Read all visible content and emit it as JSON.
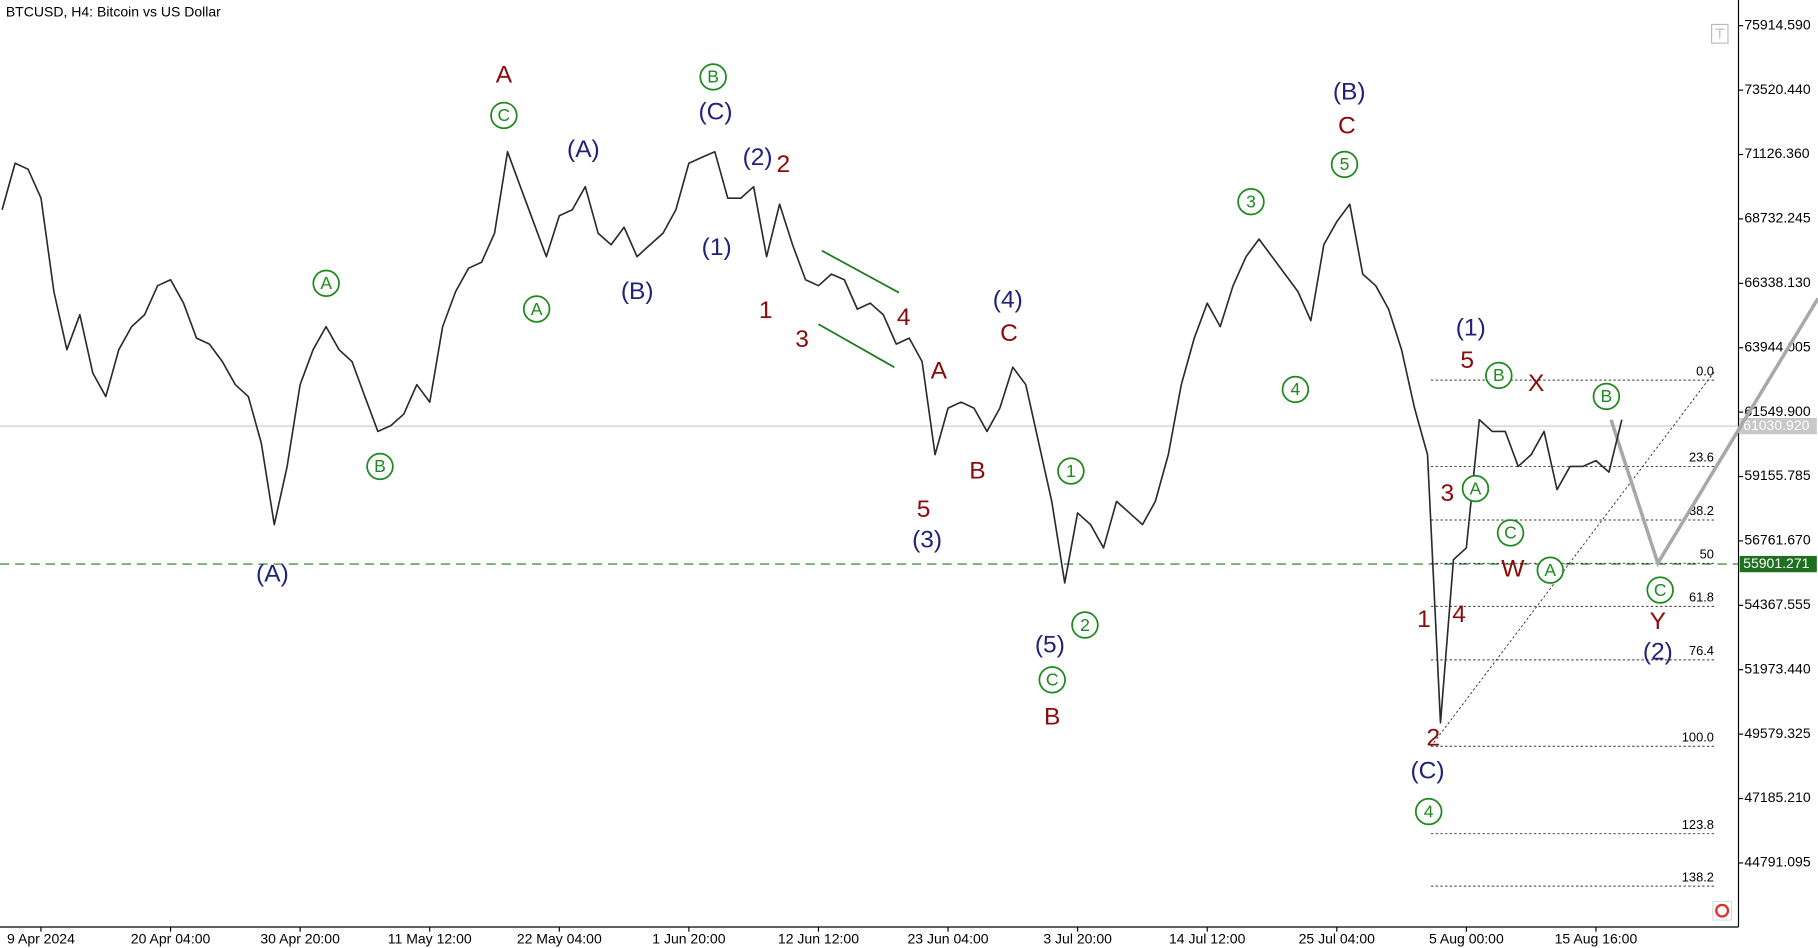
{
  "chart_data": {
    "type": "line",
    "title": "BTCUSD, H4:  Bitcoin vs US Dollar",
    "color": "#2b2b2b",
    "categories": [
      null,
      null,
      null,
      "9 Apr 2024",
      null,
      null,
      null,
      null,
      null,
      null,
      null,
      null,
      null,
      "20 Apr 04:00",
      null,
      null,
      null,
      null,
      null,
      null,
      null,
      null,
      null,
      "30 Apr 20:00",
      null,
      null,
      null,
      null,
      null,
      null,
      null,
      null,
      null,
      "11 May 12:00",
      null,
      null,
      null,
      null,
      null,
      null,
      null,
      null,
      null,
      "22 May 04:00",
      null,
      null,
      null,
      null,
      null,
      null,
      null,
      null,
      null,
      "1 Jun 20:00",
      null,
      null,
      null,
      null,
      null,
      null,
      null,
      null,
      null,
      "12 Jun 12:00",
      null,
      null,
      null,
      null,
      null,
      null,
      null,
      null,
      null,
      "23 Jun 04:00",
      null,
      null,
      null,
      null,
      null,
      null,
      null,
      null,
      null,
      "3 Jul 20:00",
      null,
      null,
      null,
      null,
      null,
      null,
      null,
      null,
      null,
      "14 Jul 12:00",
      null,
      null,
      null,
      null,
      null,
      null,
      null,
      null,
      null,
      "25 Jul 04:00",
      null,
      null,
      null,
      null,
      null,
      null,
      null,
      null,
      null,
      "5 Aug 00:00",
      null,
      null,
      null,
      null,
      null,
      null,
      null,
      null,
      null,
      "15 Aug 16:00",
      null,
      null,
      null,
      null,
      null,
      null,
      null,
      null,
      null,
      null,
      null
    ],
    "values": [
      69070,
      70800,
      70580,
      69500,
      66030,
      63870,
      65170,
      63000,
      62130,
      63870,
      64730,
      65170,
      66250,
      66470,
      65600,
      64300,
      64080,
      63430,
      62570,
      62130,
      60400,
      57370,
      59530,
      62570,
      63870,
      64730,
      63870,
      63430,
      62130,
      60830,
      61050,
      61480,
      62570,
      61920,
      64730,
      66030,
      66900,
      67120,
      68200,
      71230,
      69930,
      68630,
      67330,
      68850,
      69070,
      69930,
      68200,
      67770,
      68420,
      67330,
      67770,
      68200,
      69070,
      70800,
      71020,
      71230,
      69500,
      69500,
      69930,
      67330,
      69280,
      67770,
      66470,
      66250,
      66680,
      66470,
      65380,
      65600,
      65170,
      64080,
      64300,
      63430,
      59970,
      61700,
      61920,
      61700,
      60830,
      61700,
      63220,
      62570,
      60400,
      58230,
      55200,
      57800,
      57370,
      56500,
      58230,
      57800,
      57370,
      58230,
      59970,
      62570,
      64300,
      65600,
      64730,
      66250,
      67330,
      67980,
      67330,
      66680,
      66030,
      64950,
      67770,
      68630,
      69280,
      66680,
      66250,
      65380,
      63870,
      61700,
      59970,
      50000,
      56070,
      56500,
      61270,
      60830,
      60830,
      59530,
      59970,
      60830,
      58670,
      59530,
      59530,
      59750,
      59320,
      61270,
      null,
      null,
      null,
      null,
      null,
      null,
      null,
      null,
      null
    ],
    "ylim": [
      42410,
      76870
    ],
    "yticks": [
      {
        "value": 75914.59,
        "label": "75914.590"
      },
      {
        "value": 73520.44,
        "label": "73520.440"
      },
      {
        "value": 71126.36,
        "label": "71126.360"
      },
      68732.245,
      {
        "value": 66338.13,
        "label": "66338.130"
      },
      63944.005,
      {
        "value": 61549.9,
        "label": "61549.900"
      },
      59155.785,
      {
        "value": 56761.67,
        "label": "56761.670"
      },
      54367.555,
      {
        "value": 51973.44,
        "label": "51973.440"
      },
      49579.325,
      {
        "value": 47185.21,
        "label": "47185.210"
      },
      44791.095
    ],
    "current_price": {
      "value": 61030.92,
      "label": "61030.920"
    },
    "support_level": 55901.271,
    "fib_levels": [
      {
        "label": "0.0",
        "price": 62740
      },
      {
        "label": "23.6",
        "price": 59530
      },
      {
        "label": "38.2",
        "price": 57540
      },
      {
        "label": "50",
        "price": 55930
      },
      {
        "label": "61.8",
        "price": 54330
      },
      {
        "label": "76.4",
        "price": 52340
      },
      {
        "label": "100.0",
        "price": 49130
      },
      {
        "label": "123.8",
        "price": 45880
      },
      {
        "label": "138.2",
        "price": 43930
      }
    ],
    "annotations": [
      {
        "text": "(A)",
        "color": "#1f237a"
      },
      {
        "text": "A",
        "color": "#8b0a0a"
      },
      {
        "text": "C",
        "color": "#1e8a1e",
        "circled": true
      },
      {
        "text": "A",
        "color": "#1e8a1e",
        "circled": true
      },
      {
        "text": "A",
        "color": "#1e8a1e",
        "circled": true
      },
      {
        "text": "B",
        "color": "#1e8a1e",
        "circled": true
      },
      {
        "text": "(A)",
        "color": "#1f237a"
      },
      {
        "text": "(B)",
        "color": "#1f237a"
      },
      {
        "text": "B",
        "color": "#1e8a1e",
        "circled": true
      },
      {
        "text": "(C)",
        "color": "#1f237a"
      },
      {
        "text": "(1)",
        "color": "#1f237a"
      },
      {
        "text": "(2)",
        "color": "#1f237a"
      },
      {
        "text": "2",
        "color": "#8b0a0a"
      },
      {
        "text": "1",
        "color": "#8b0a0a"
      },
      {
        "text": "3",
        "color": "#8b0a0a"
      },
      {
        "text": "4",
        "color": "#8b0a0a"
      },
      {
        "text": "A",
        "color": "#8b0a0a"
      },
      {
        "text": "B",
        "color": "#8b0a0a"
      },
      {
        "text": "5",
        "color": "#8b0a0a"
      },
      {
        "text": "(3)",
        "color": "#1f237a"
      },
      {
        "text": "(4)",
        "color": "#1f237a"
      },
      {
        "text": "C",
        "color": "#8b0a0a"
      },
      {
        "text": "1",
        "color": "#1e8a1e",
        "circled": true
      },
      {
        "text": "2",
        "color": "#1e8a1e",
        "circled": true
      },
      {
        "text": "(5)",
        "color": "#1f237a"
      },
      {
        "text": "C",
        "color": "#1e8a1e",
        "circled": true
      },
      {
        "text": "B",
        "color": "#8b0a0a"
      },
      {
        "text": "3",
        "color": "#1e8a1e",
        "circled": true
      },
      {
        "text": "4",
        "color": "#1e8a1e",
        "circled": true
      },
      {
        "text": "(B)",
        "color": "#1f237a"
      },
      {
        "text": "C",
        "color": "#8b0a0a"
      },
      {
        "text": "5",
        "color": "#1e8a1e",
        "circled": true
      },
      {
        "text": "(1)",
        "color": "#1f237a"
      },
      {
        "text": "5",
        "color": "#8b0a0a"
      },
      {
        "text": "B",
        "color": "#1e8a1e",
        "circled": true
      },
      {
        "text": "X",
        "color": "#8b0a0a"
      },
      {
        "text": "B",
        "color": "#1e8a1e",
        "circled": true
      },
      {
        "text": "3",
        "color": "#8b0a0a"
      },
      {
        "text": "A",
        "color": "#1e8a1e",
        "circled": true
      },
      {
        "text": "C",
        "color": "#1e8a1e",
        "circled": true
      },
      {
        "text": "W",
        "color": "#8b0a0a"
      },
      {
        "text": "A",
        "color": "#1e8a1e",
        "circled": true
      },
      {
        "text": "1",
        "color": "#8b0a0a"
      },
      {
        "text": "4",
        "color": "#8b0a0a"
      },
      {
        "text": "2",
        "color": "#8b0a0a"
      },
      {
        "text": "(C)",
        "color": "#1f237a"
      },
      {
        "text": "4",
        "color": "#1e8a1e",
        "circled": true
      },
      {
        "text": "C",
        "color": "#1e8a1e",
        "circled": true
      },
      {
        "text": "Y",
        "color": "#8b0a0a"
      },
      {
        "text": "(2)",
        "color": "#1f237a"
      }
    ]
  }
}
